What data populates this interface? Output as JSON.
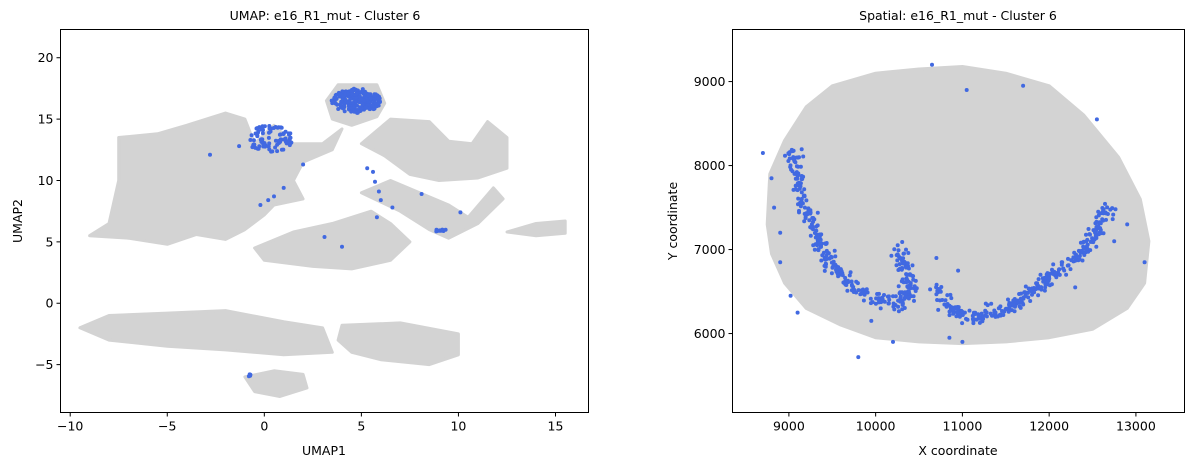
{
  "chart_data": [
    {
      "type": "scatter",
      "title": "UMAP: e16_R1_mut - Cluster 6",
      "xlabel": "UMAP1",
      "ylabel": "UMAP2",
      "xlim": [
        -10.5,
        16.7
      ],
      "ylim": [
        -8.9,
        22.3
      ],
      "xticks": [
        -10,
        -5,
        0,
        5,
        10,
        15
      ],
      "yticks": [
        -5,
        0,
        5,
        10,
        15,
        20
      ],
      "colors": {
        "background": "#d3d3d3",
        "highlight": "#4169e1"
      },
      "background_regions": [
        [
          [
            -9.0,
            5.5
          ],
          [
            -8.0,
            6.5
          ],
          [
            -7.5,
            10.0
          ],
          [
            -7.5,
            13.5
          ],
          [
            -5.5,
            13.8
          ],
          [
            -4.0,
            14.5
          ],
          [
            -2.0,
            15.5
          ],
          [
            -1.0,
            15.0
          ],
          [
            -0.5,
            13.0
          ],
          [
            0.5,
            14.5
          ],
          [
            1.5,
            13.0
          ],
          [
            3.0,
            13.0
          ],
          [
            4.0,
            14.2
          ],
          [
            3.5,
            12.5
          ],
          [
            2.0,
            11.5
          ],
          [
            1.5,
            10.0
          ],
          [
            2.0,
            8.5
          ],
          [
            0.5,
            8.0
          ],
          [
            0.0,
            7.2
          ],
          [
            -1.0,
            6.0
          ],
          [
            -2.0,
            5.2
          ],
          [
            -3.5,
            5.6
          ],
          [
            -5.0,
            4.8
          ],
          [
            -7.0,
            5.3
          ]
        ],
        [
          [
            3.2,
            16.5
          ],
          [
            3.8,
            17.8
          ],
          [
            5.8,
            17.8
          ],
          [
            6.2,
            16.3
          ],
          [
            5.8,
            15.2
          ],
          [
            4.5,
            14.5
          ],
          [
            3.5,
            15.0
          ]
        ],
        [
          [
            5.0,
            13.0
          ],
          [
            6.5,
            15.0
          ],
          [
            8.5,
            14.8
          ],
          [
            9.5,
            13.2
          ],
          [
            10.7,
            13.0
          ],
          [
            11.5,
            14.8
          ],
          [
            12.5,
            13.5
          ],
          [
            12.5,
            11.0
          ],
          [
            11.0,
            10.2
          ],
          [
            9.0,
            10.0
          ],
          [
            7.5,
            10.5
          ],
          [
            6.2,
            12.0
          ]
        ],
        [
          [
            5.0,
            9.0
          ],
          [
            6.5,
            10.0
          ],
          [
            8.0,
            9.0
          ],
          [
            9.5,
            8.0
          ],
          [
            10.5,
            7.0
          ],
          [
            11.8,
            9.4
          ],
          [
            12.3,
            8.5
          ],
          [
            11.0,
            6.5
          ],
          [
            9.5,
            5.3
          ],
          [
            8.5,
            6.0
          ],
          [
            7.0,
            7.5
          ]
        ],
        [
          [
            -0.5,
            4.5
          ],
          [
            1.5,
            5.8
          ],
          [
            3.5,
            6.5
          ],
          [
            5.5,
            7.5
          ],
          [
            6.5,
            6.5
          ],
          [
            7.5,
            5.0
          ],
          [
            6.5,
            3.5
          ],
          [
            4.5,
            2.8
          ],
          [
            2.5,
            3.0
          ],
          [
            0.0,
            3.5
          ]
        ],
        [
          [
            12.5,
            5.8
          ],
          [
            14.0,
            6.5
          ],
          [
            15.5,
            6.7
          ],
          [
            15.5,
            5.7
          ],
          [
            14.0,
            5.5
          ]
        ],
        [
          [
            -9.5,
            -2.0
          ],
          [
            -8.0,
            -1.0
          ],
          [
            -5.0,
            -0.8
          ],
          [
            -2.0,
            -0.6
          ],
          [
            1.0,
            -1.5
          ],
          [
            3.0,
            -2.0
          ],
          [
            3.5,
            -4.0
          ],
          [
            1.0,
            -4.2
          ],
          [
            -2.0,
            -3.8
          ],
          [
            -5.0,
            -3.5
          ],
          [
            -8.0,
            -3.0
          ]
        ],
        [
          [
            4.0,
            -1.8
          ],
          [
            7.0,
            -1.6
          ],
          [
            10.0,
            -2.5
          ],
          [
            10.0,
            -4.2
          ],
          [
            8.5,
            -5.0
          ],
          [
            6.0,
            -4.6
          ],
          [
            4.5,
            -4.0
          ],
          [
            3.8,
            -3.0
          ]
        ],
        [
          [
            -1.0,
            -6.0
          ],
          [
            0.5,
            -5.5
          ],
          [
            2.0,
            -5.8
          ],
          [
            2.2,
            -6.9
          ],
          [
            0.8,
            -7.6
          ],
          [
            -0.5,
            -7.2
          ]
        ]
      ],
      "highlight_clusters": [
        {
          "cx": 4.7,
          "cy": 16.5,
          "rx": 1.3,
          "ry": 1.0,
          "n": 240
        },
        {
          "cx": 0.3,
          "cy": 13.4,
          "rx": 1.2,
          "ry": 1.1,
          "n": 90
        },
        {
          "cx": 9.1,
          "cy": 5.9,
          "rx": 0.35,
          "ry": 0.15,
          "n": 12
        },
        {
          "cx": -0.8,
          "cy": -5.9,
          "rx": 0.15,
          "ry": 0.12,
          "n": 5
        }
      ],
      "highlight_points": [
        [
          -2.8,
          12.1
        ],
        [
          -1.3,
          12.8
        ],
        [
          -0.2,
          8.0
        ],
        [
          0.2,
          8.4
        ],
        [
          0.5,
          8.7
        ],
        [
          1.0,
          9.4
        ],
        [
          2.0,
          11.3
        ],
        [
          3.1,
          5.4
        ],
        [
          4.0,
          4.6
        ],
        [
          5.3,
          11.0
        ],
        [
          5.6,
          10.7
        ],
        [
          5.7,
          9.9
        ],
        [
          5.9,
          9.1
        ],
        [
          6.0,
          8.4
        ],
        [
          6.6,
          7.8
        ],
        [
          5.8,
          7.0
        ],
        [
          8.1,
          8.9
        ],
        [
          10.1,
          7.4
        ]
      ]
    },
    {
      "type": "scatter",
      "title": "Spatial: e16_R1_mut - Cluster 6",
      "xlabel": "X coordinate",
      "ylabel": "Y coordinate",
      "xlim": [
        8350,
        13560
      ],
      "ylim": [
        5060,
        9620
      ],
      "xticks": [
        9000,
        10000,
        11000,
        12000,
        13000
      ],
      "yticks": [
        6000,
        7000,
        8000,
        9000
      ],
      "colors": {
        "background": "#d3d3d3",
        "highlight": "#4169e1"
      },
      "background_regions": [
        [
          [
            8750,
            7300
          ],
          [
            8780,
            7900
          ],
          [
            8950,
            8300
          ],
          [
            9200,
            8700
          ],
          [
            9500,
            8950
          ],
          [
            10000,
            9100
          ],
          [
            10500,
            9150
          ],
          [
            11000,
            9180
          ],
          [
            11500,
            9100
          ],
          [
            12000,
            8950
          ],
          [
            12400,
            8600
          ],
          [
            12800,
            8100
          ],
          [
            13050,
            7600
          ],
          [
            13150,
            7100
          ],
          [
            13100,
            6600
          ],
          [
            12900,
            6300
          ],
          [
            12500,
            6050
          ],
          [
            12000,
            5950
          ],
          [
            11500,
            5900
          ],
          [
            11000,
            5880
          ],
          [
            10500,
            5900
          ],
          [
            10000,
            5950
          ],
          [
            9600,
            6100
          ],
          [
            9200,
            6300
          ],
          [
            8950,
            6600
          ],
          [
            8800,
            6950
          ]
        ]
      ],
      "highlight_bands": [
        {
          "path": [
            [
              9050,
              8200
            ],
            [
              9100,
              7800
            ],
            [
              9250,
              7300
            ],
            [
              9450,
              6900
            ],
            [
              9700,
              6600
            ],
            [
              10000,
              6400
            ],
            [
              10300,
              6350
            ],
            [
              10400,
              6450
            ],
            [
              10300,
              6900
            ],
            [
              10250,
              7000
            ]
          ],
          "width": 140,
          "n": 330
        },
        {
          "path": [
            [
              10700,
              6500
            ],
            [
              10900,
              6250
            ],
            [
              11200,
              6200
            ],
            [
              11500,
              6300
            ],
            [
              11800,
              6500
            ],
            [
              12100,
              6750
            ],
            [
              12400,
              7000
            ],
            [
              12600,
              7300
            ],
            [
              12700,
              7550
            ]
          ],
          "width": 130,
          "n": 320
        }
      ],
      "highlight_points": [
        [
          8700,
          8150
        ],
        [
          8800,
          7850
        ],
        [
          8830,
          7500
        ],
        [
          8900,
          7200
        ],
        [
          8900,
          6850
        ],
        [
          9020,
          6450
        ],
        [
          9100,
          6250
        ],
        [
          9800,
          5720
        ],
        [
          9950,
          6150
        ],
        [
          10200,
          5900
        ],
        [
          10350,
          7000
        ],
        [
          10700,
          6900
        ],
        [
          10650,
          9200
        ],
        [
          11050,
          8900
        ],
        [
          11700,
          8950
        ],
        [
          12550,
          8550
        ],
        [
          12750,
          7100
        ],
        [
          12900,
          7300
        ],
        [
          13100,
          6850
        ],
        [
          12300,
          6550
        ],
        [
          12150,
          6850
        ],
        [
          11900,
          6700
        ],
        [
          10950,
          6750
        ],
        [
          10850,
          5950
        ],
        [
          11000,
          5900
        ]
      ]
    }
  ]
}
